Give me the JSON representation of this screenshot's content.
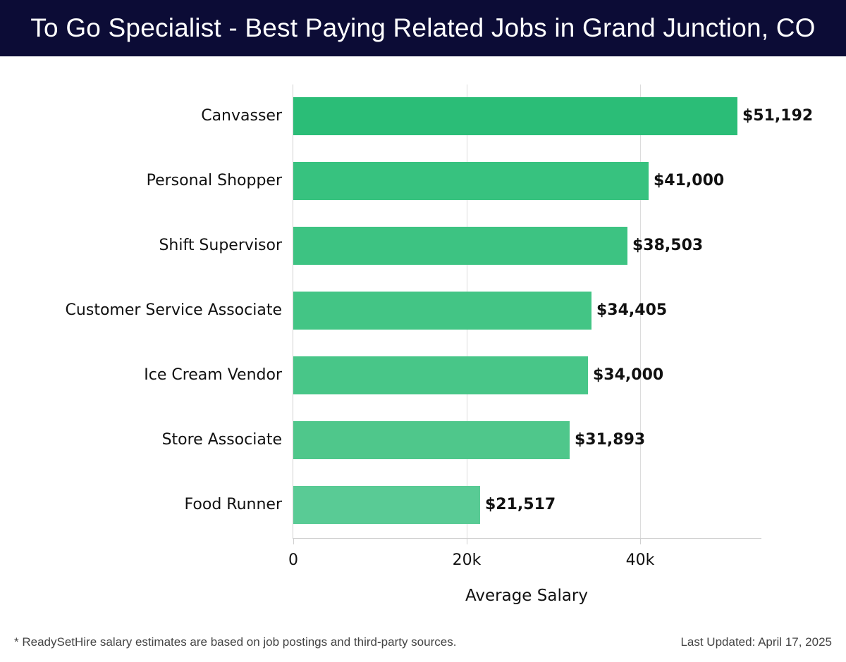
{
  "header": {
    "title": "To Go Specialist - Best Paying Related Jobs in Grand Junction, CO"
  },
  "colors": {
    "header_bg": "#0c0c36",
    "bar_colors": [
      "#2bbd77",
      "#37c27f",
      "#3dc382",
      "#43c585",
      "#48c688",
      "#4fc78b",
      "#59cb95"
    ]
  },
  "chart_data": {
    "type": "bar",
    "orientation": "horizontal",
    "title": "To Go Specialist - Best Paying Related Jobs in Grand Junction, CO",
    "categories": [
      "Canvasser",
      "Personal Shopper",
      "Shift Supervisor",
      "Customer Service Associate",
      "Ice Cream Vendor",
      "Store Associate",
      "Food Runner"
    ],
    "values": [
      51192,
      41000,
      38503,
      34405,
      34000,
      31893,
      21517
    ],
    "value_labels": [
      "$51,192",
      "$41,000",
      "$38,503",
      "$34,405",
      "$34,000",
      "$31,893",
      "$21,517"
    ],
    "xlabel": "Average Salary",
    "ylabel": "",
    "xticks": [
      0,
      20000,
      40000
    ],
    "xtick_labels": [
      "0",
      "20k",
      "40k"
    ],
    "xlim": [
      0,
      54000
    ],
    "grid": true,
    "legend": null
  },
  "footer": {
    "note": "* ReadySetHire salary estimates are based on job postings and third-party sources.",
    "last_updated": "Last Updated: April 17, 2025"
  }
}
